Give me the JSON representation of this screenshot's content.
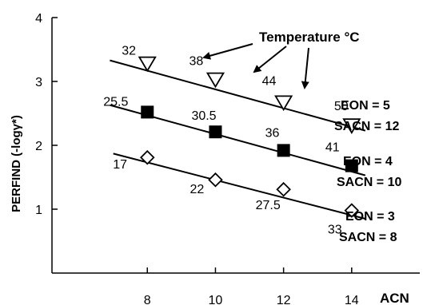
{
  "chart_data": {
    "type": "scatter",
    "title": "",
    "xlabel": "ACN",
    "ylabel": "PERFIND (-logγ*)",
    "xlim": [
      5.2,
      16.0
    ],
    "ylim": [
      0,
      4
    ],
    "x_ticks": [
      "8",
      "10",
      "12",
      "14"
    ],
    "y_ticks": [
      "1",
      "2",
      "3",
      "4"
    ],
    "grid": false,
    "series": [
      {
        "marker": "triangle-down-open",
        "name_lines": [
          "EON = 5",
          "SACN = 12"
        ],
        "x": [
          8,
          10,
          12,
          14
        ],
        "y": [
          3.28,
          3.03,
          2.67,
          2.31
        ],
        "temperatures": [
          "32",
          "38",
          "44",
          "50"
        ],
        "fit": {
          "x": [
            6.9,
            14.4
          ],
          "y": [
            3.33,
            2.23
          ]
        }
      },
      {
        "marker": "square-filled",
        "name_lines": [
          "EON = 4",
          "SACN = 10"
        ],
        "x": [
          8,
          10,
          12,
          14
        ],
        "y": [
          2.52,
          2.21,
          1.92,
          1.68
        ],
        "temperatures": [
          "25.5",
          "30.5",
          "36",
          "41"
        ],
        "fit": {
          "x": [
            6.9,
            14.4
          ],
          "y": [
            2.63,
            1.53
          ]
        }
      },
      {
        "marker": "diamond-open",
        "name_lines": [
          "EON = 3",
          "SACN = 8"
        ],
        "x": [
          8,
          10,
          12,
          14
        ],
        "y": [
          1.81,
          1.46,
          1.31,
          0.98
        ],
        "temperatures": [
          "17",
          "22",
          "27.5",
          "33"
        ],
        "fit": {
          "x": [
            7.0,
            14.4
          ],
          "y": [
            1.87,
            0.85
          ]
        }
      }
    ],
    "annotation": {
      "text": "Temperature °C"
    }
  }
}
